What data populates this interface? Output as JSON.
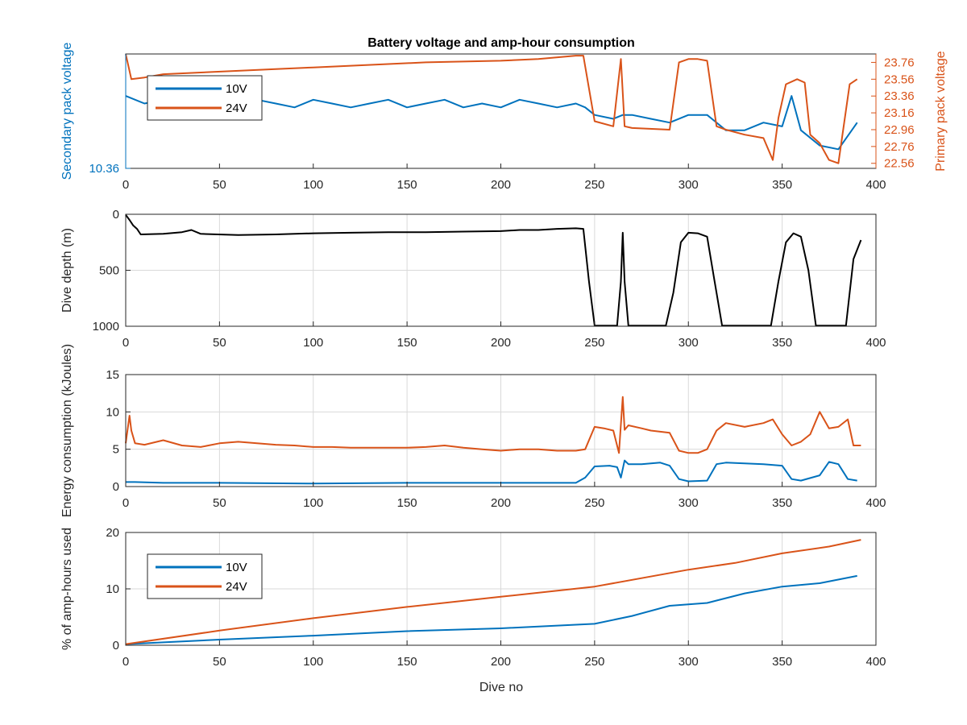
{
  "figure": {
    "title": "Battery voltage and amp-hour consumption",
    "xlabel": "Dive no"
  },
  "colors": {
    "s10": "#0072BD",
    "s24": "#D95319",
    "depth": "#000000",
    "grid": "#d9d9d9",
    "axis": "#262626"
  },
  "chart_data": [
    {
      "type": "line",
      "title": "Battery voltage and amp-hour consumption",
      "xlabel": "",
      "ylabel_left": "Secondary pack voltage",
      "ylabel_right": "Primary pack voltage",
      "xlim": [
        0,
        400
      ],
      "xticks": [
        0,
        50,
        100,
        150,
        200,
        250,
        300,
        350,
        400
      ],
      "ylim_left": [
        10.36,
        10.66
      ],
      "yticks_left": [
        10.36
      ],
      "ylim_right": [
        22.5,
        23.86
      ],
      "yticks_right": [
        22.56,
        22.76,
        22.96,
        23.16,
        23.36,
        23.56,
        23.76
      ],
      "legend": {
        "location": "top-left",
        "entries": [
          "10V",
          "24V"
        ]
      },
      "series": [
        {
          "name": "10V",
          "axis": "left",
          "x": [
            0,
            10,
            20,
            30,
            40,
            50,
            60,
            70,
            80,
            90,
            100,
            110,
            120,
            130,
            140,
            150,
            160,
            170,
            180,
            190,
            200,
            210,
            220,
            230,
            240,
            245,
            250,
            260,
            265,
            270,
            280,
            290,
            300,
            310,
            320,
            330,
            340,
            350,
            355,
            360,
            370,
            380,
            390
          ],
          "y": [
            10.55,
            10.53,
            10.54,
            10.53,
            10.52,
            10.53,
            10.52,
            10.54,
            10.53,
            10.52,
            10.54,
            10.53,
            10.52,
            10.53,
            10.54,
            10.52,
            10.53,
            10.54,
            10.52,
            10.53,
            10.52,
            10.54,
            10.53,
            10.52,
            10.53,
            10.52,
            10.5,
            10.49,
            10.5,
            10.5,
            10.49,
            10.48,
            10.5,
            10.5,
            10.46,
            10.46,
            10.48,
            10.47,
            10.55,
            10.46,
            10.42,
            10.41,
            10.48
          ]
        },
        {
          "name": "24V",
          "axis": "right",
          "x": [
            0,
            3,
            10,
            20,
            40,
            60,
            80,
            100,
            120,
            140,
            160,
            180,
            200,
            220,
            240,
            244,
            250,
            260,
            264,
            266,
            270,
            290,
            295,
            300,
            305,
            310,
            315,
            320,
            330,
            340,
            345,
            348,
            352,
            358,
            362,
            365,
            370,
            375,
            380,
            386,
            390
          ],
          "y": [
            23.86,
            23.56,
            23.58,
            23.62,
            23.64,
            23.66,
            23.68,
            23.7,
            23.72,
            23.74,
            23.76,
            23.77,
            23.78,
            23.8,
            23.84,
            23.84,
            23.06,
            23.0,
            23.8,
            23.0,
            22.98,
            22.96,
            23.76,
            23.8,
            23.8,
            23.78,
            23.0,
            22.96,
            22.9,
            22.86,
            22.6,
            23.1,
            23.5,
            23.56,
            23.52,
            22.9,
            22.8,
            22.6,
            22.56,
            23.5,
            23.56
          ]
        }
      ]
    },
    {
      "type": "line",
      "xlabel": "",
      "ylabel": "Dive depth (m)",
      "xlim": [
        0,
        400
      ],
      "xticks": [
        0,
        50,
        100,
        150,
        200,
        250,
        300,
        350,
        400
      ],
      "ylim": [
        0,
        1000
      ],
      "ylim_reversed": true,
      "yticks": [
        0,
        500,
        1000
      ],
      "series": [
        {
          "name": "",
          "x": [
            0,
            2,
            4,
            6,
            8,
            20,
            30,
            35,
            40,
            60,
            80,
            100,
            120,
            140,
            160,
            180,
            200,
            210,
            220,
            230,
            240,
            244,
            247,
            250,
            255,
            262,
            264,
            265,
            266,
            268,
            270,
            280,
            288,
            292,
            296,
            300,
            305,
            310,
            314,
            318,
            330,
            340,
            344,
            348,
            352,
            356,
            360,
            364,
            368,
            372,
            380,
            384,
            388,
            392
          ],
          "y": [
            5,
            50,
            100,
            130,
            180,
            175,
            160,
            140,
            175,
            185,
            180,
            170,
            165,
            160,
            160,
            155,
            150,
            140,
            140,
            130,
            125,
            130,
            600,
            995,
            995,
            995,
            600,
            165,
            600,
            995,
            995,
            995,
            995,
            700,
            250,
            165,
            170,
            200,
            600,
            995,
            995,
            995,
            995,
            600,
            250,
            170,
            200,
            500,
            995,
            995,
            995,
            995,
            400,
            230
          ]
        }
      ]
    },
    {
      "type": "line",
      "xlabel": "",
      "ylabel": "Energy consumption (kJoules)",
      "xlim": [
        0,
        400
      ],
      "xticks": [
        0,
        50,
        100,
        150,
        200,
        250,
        300,
        350,
        400
      ],
      "ylim": [
        0,
        15
      ],
      "yticks": [
        0,
        5,
        10,
        15
      ],
      "series": [
        {
          "name": "24V",
          "x": [
            0,
            2,
            3,
            5,
            10,
            20,
            30,
            40,
            50,
            60,
            70,
            80,
            90,
            100,
            110,
            120,
            130,
            140,
            150,
            160,
            170,
            180,
            190,
            200,
            210,
            220,
            230,
            240,
            245,
            250,
            255,
            260,
            263,
            265,
            266,
            268,
            275,
            280,
            290,
            295,
            300,
            305,
            310,
            315,
            320,
            330,
            340,
            345,
            350,
            355,
            360,
            365,
            370,
            375,
            380,
            385,
            388,
            392
          ],
          "y": [
            5.8,
            9.5,
            7.5,
            5.8,
            5.6,
            6.2,
            5.5,
            5.3,
            5.8,
            6.0,
            5.8,
            5.6,
            5.5,
            5.3,
            5.3,
            5.2,
            5.2,
            5.2,
            5.2,
            5.3,
            5.5,
            5.2,
            5.0,
            4.8,
            5.0,
            5.0,
            4.8,
            4.8,
            5.0,
            8.0,
            7.8,
            7.5,
            4.5,
            12.0,
            7.6,
            8.2,
            7.8,
            7.5,
            7.2,
            4.8,
            4.5,
            4.5,
            5.0,
            7.5,
            8.5,
            8.0,
            8.5,
            9.0,
            7.0,
            5.5,
            6.0,
            7.0,
            10.0,
            7.8,
            8.0,
            9.0,
            5.5,
            5.5
          ]
        },
        {
          "name": "10V",
          "x": [
            0,
            5,
            20,
            50,
            100,
            150,
            200,
            240,
            245,
            250,
            258,
            262,
            264,
            266,
            268,
            275,
            285,
            290,
            295,
            300,
            310,
            315,
            320,
            340,
            350,
            355,
            360,
            370,
            375,
            380,
            385,
            390
          ],
          "y": [
            0.6,
            0.6,
            0.5,
            0.5,
            0.4,
            0.5,
            0.5,
            0.5,
            1.2,
            2.7,
            2.8,
            2.6,
            1.2,
            3.5,
            3.0,
            3.0,
            3.2,
            2.8,
            1.0,
            0.7,
            0.8,
            3.0,
            3.2,
            3.0,
            2.8,
            1.0,
            0.8,
            1.5,
            3.3,
            3.0,
            1.0,
            0.8
          ]
        }
      ]
    },
    {
      "type": "line",
      "xlabel": "Dive no",
      "ylabel": "% of amp-hours used",
      "xlim": [
        0,
        400
      ],
      "xticks": [
        0,
        50,
        100,
        150,
        200,
        250,
        300,
        350,
        400
      ],
      "ylim": [
        0,
        20
      ],
      "yticks": [
        0,
        10,
        20
      ],
      "legend": {
        "location": "top-left",
        "entries": [
          "10V",
          "24V"
        ]
      },
      "series": [
        {
          "name": "10V",
          "x": [
            0,
            50,
            100,
            150,
            200,
            250,
            270,
            290,
            310,
            330,
            350,
            370,
            390
          ],
          "y": [
            0.2,
            1.0,
            1.7,
            2.5,
            3.0,
            3.8,
            5.2,
            7.0,
            7.5,
            9.2,
            10.4,
            11.0,
            12.3
          ]
        },
        {
          "name": "24V",
          "x": [
            0,
            50,
            100,
            150,
            200,
            250,
            300,
            325,
            350,
            375,
            392
          ],
          "y": [
            0.2,
            2.6,
            4.8,
            6.8,
            8.6,
            10.4,
            13.4,
            14.6,
            16.3,
            17.5,
            18.7
          ]
        }
      ]
    }
  ]
}
